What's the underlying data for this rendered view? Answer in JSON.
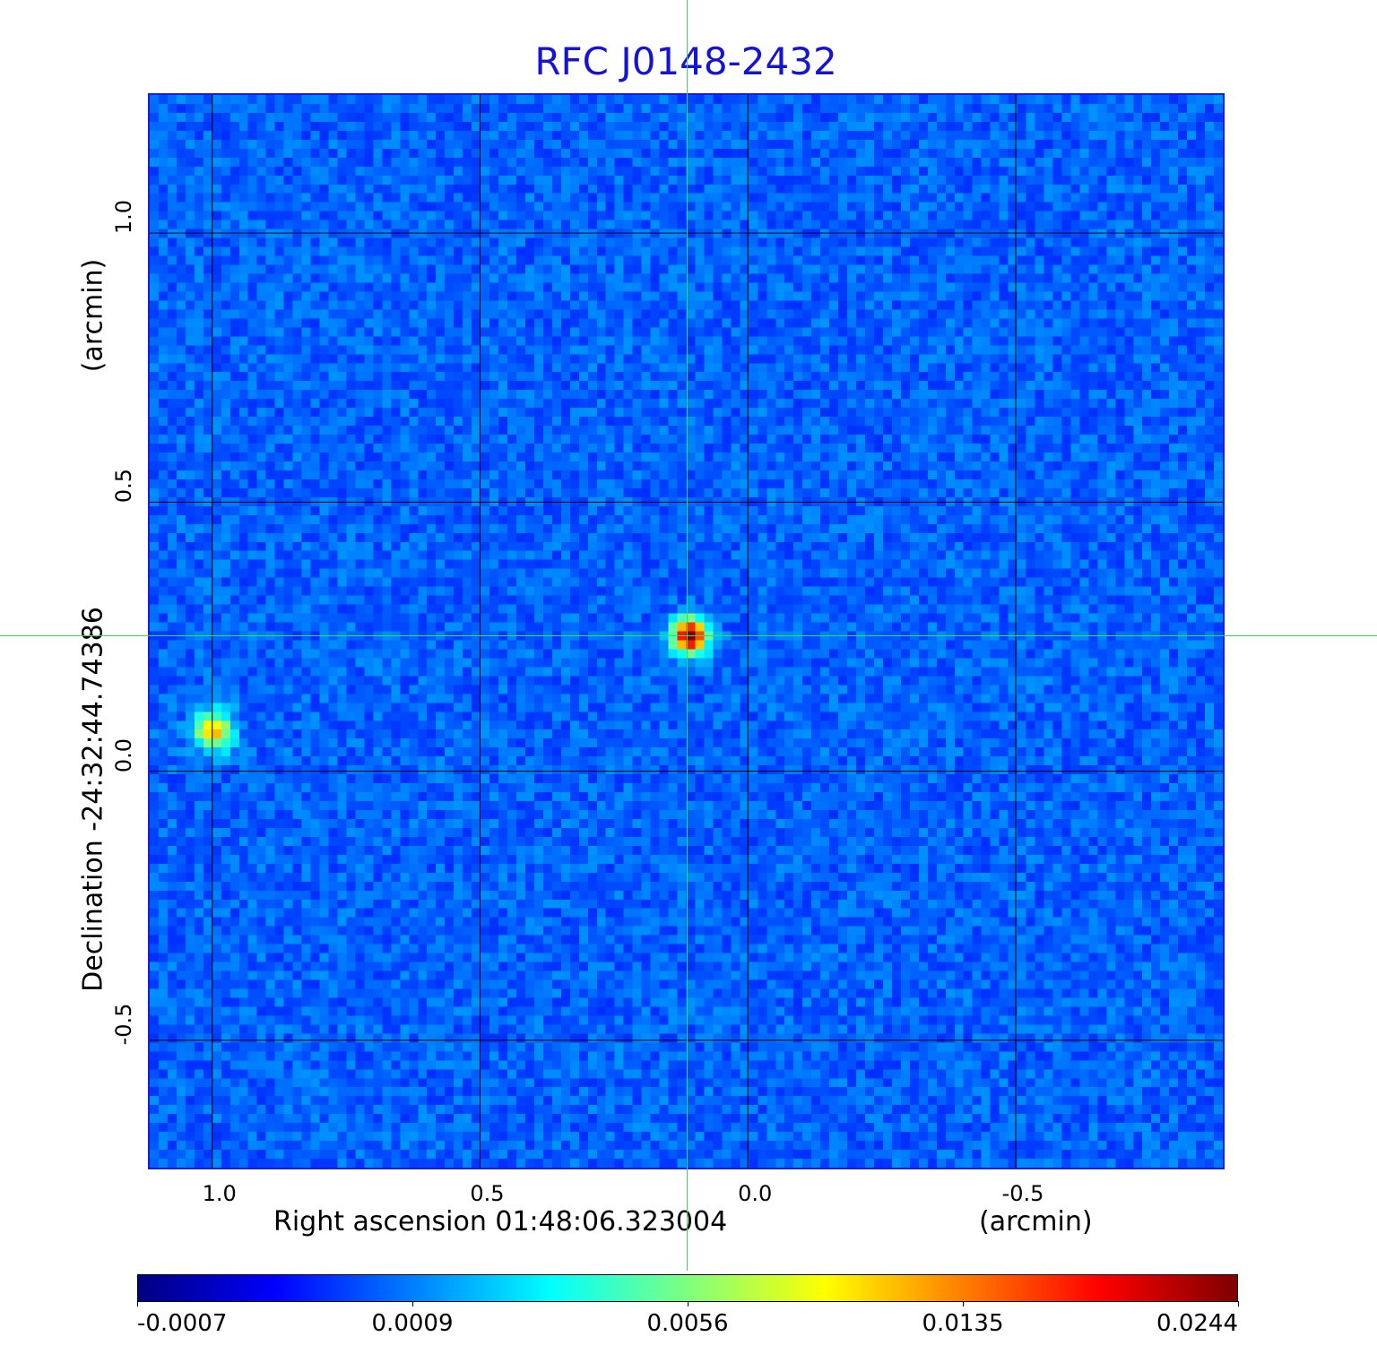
{
  "chart_data": {
    "type": "heatmap",
    "title": "RFC J0148-2432",
    "xlabel": "Right ascension  01:48:06.323004",
    "xunit": "(arcmin)",
    "ylabel": "Declination  -24:32:44.74386",
    "yunit": "(arcmin)",
    "xlim": [
      1.12,
      -0.89
    ],
    "ylim": [
      -0.74,
      1.26
    ],
    "x_ticks": [
      {
        "value": 1.0,
        "label": "1.0"
      },
      {
        "value": 0.5,
        "label": "0.5"
      },
      {
        "value": 0.0,
        "label": "0.0"
      },
      {
        "value": -0.5,
        "label": "-0.5"
      }
    ],
    "y_ticks": [
      {
        "value": 1.0,
        "label": "1.0"
      },
      {
        "value": 0.5,
        "label": "0.5"
      },
      {
        "value": 0.0,
        "label": "0.0"
      },
      {
        "value": -0.5,
        "label": "-0.5"
      }
    ],
    "grid": true,
    "crosshair": {
      "x": 0.107,
      "y": 0.252
    },
    "sources": [
      {
        "x": 0.107,
        "y": 0.252,
        "peak": 0.0244
      },
      {
        "x": 1.0,
        "y": 0.075,
        "peak": 0.0078
      }
    ],
    "colorbar": {
      "colormap": "jet",
      "ticks": [
        "-0.0007",
        "0.0009",
        "0.0056",
        "0.0135",
        "0.0244"
      ]
    }
  }
}
